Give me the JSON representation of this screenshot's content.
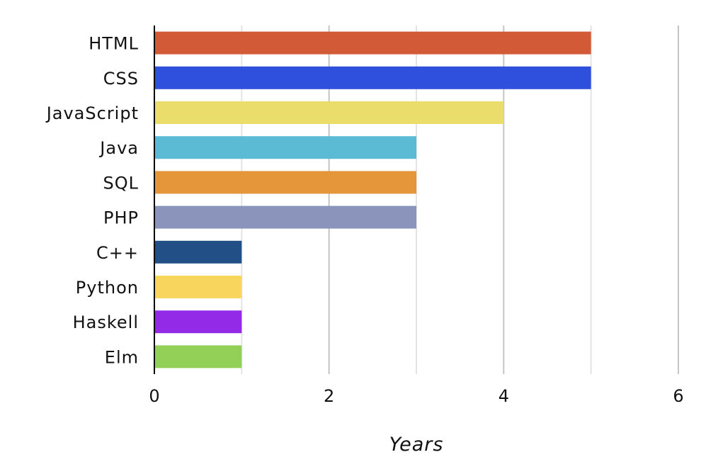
{
  "chart_data": {
    "type": "bar",
    "orientation": "horizontal",
    "categories": [
      "HTML",
      "CSS",
      "JavaScript",
      "Java",
      "SQL",
      "PHP",
      "C++",
      "Python",
      "Haskell",
      "Elm"
    ],
    "values": [
      5,
      5,
      4,
      3,
      3,
      3,
      1,
      1,
      1,
      1
    ],
    "colors": [
      "#d35a37",
      "#2f4fdd",
      "#ebdd6b",
      "#5bbbd4",
      "#e5963a",
      "#8b94ba",
      "#214f86",
      "#f8d55c",
      "#922ae8",
      "#92d057"
    ],
    "xlabel": "Years",
    "xlim": [
      0,
      6
    ],
    "xticks": [
      0,
      2,
      4,
      6
    ],
    "grid": true
  }
}
